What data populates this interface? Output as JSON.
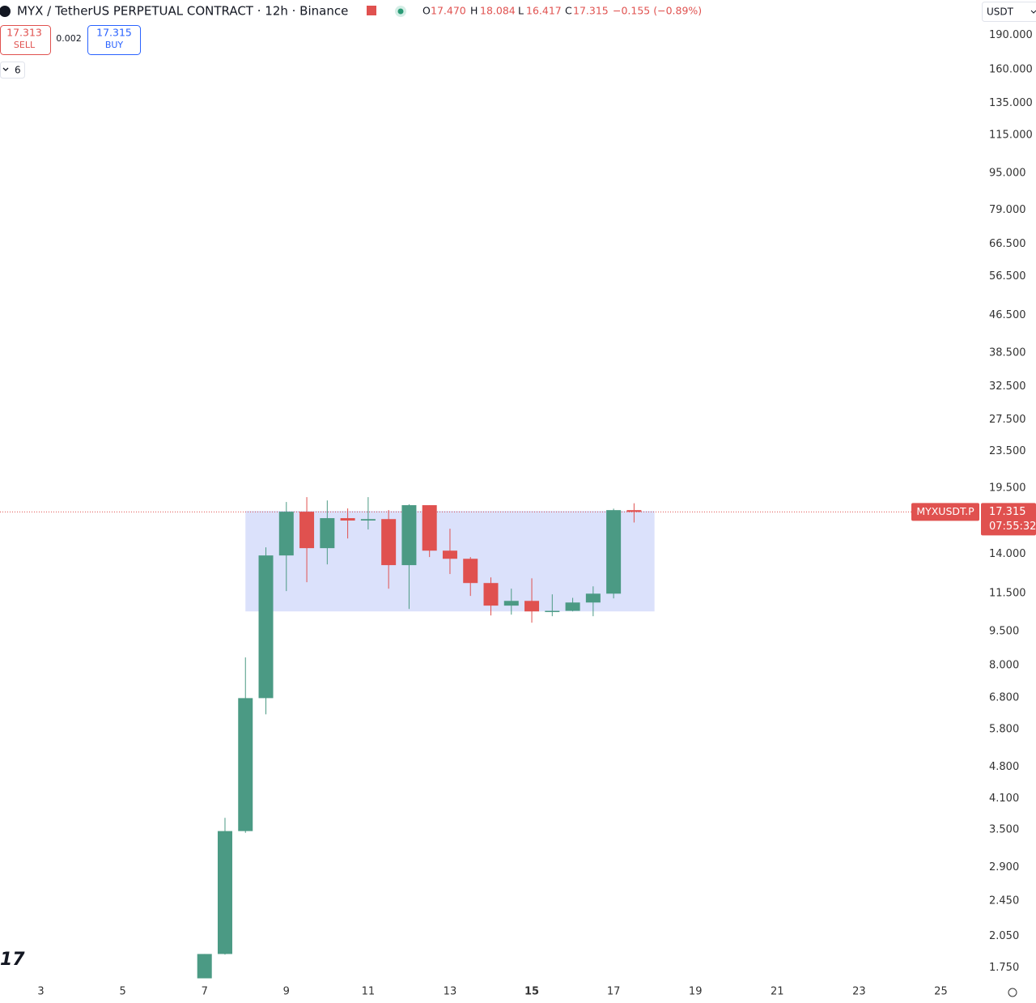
{
  "header": {
    "title": "MYX / TetherUS PERPETUAL CONTRACT · 12h · Binance",
    "legend": {
      "o": "O",
      "open": "17.470",
      "h": "H",
      "high": "18.084",
      "l": "L",
      "low": "16.417",
      "c": "C",
      "close": "17.315",
      "change": "−0.155 (−0.89%)"
    },
    "sell": {
      "price": "17.313",
      "label": "SELL"
    },
    "spread": "0.002",
    "buy": {
      "price": "17.315",
      "label": "BUY"
    },
    "indicators": "6",
    "currency": "USDT"
  },
  "chart_data": {
    "type": "candlestick",
    "log_scale": true,
    "up_color": "#4b9a84",
    "down_color": "#e0514f",
    "x": [
      7,
      7.5,
      8,
      8.5,
      9,
      9.5,
      10,
      10.5,
      11,
      11.5,
      12,
      12.5,
      13,
      13.5,
      14,
      14.5,
      15,
      15.5,
      16,
      16.5,
      17,
      17.5
    ],
    "open": [
      1.66,
      1.876,
      3.48,
      6.79,
      13.91,
      17.33,
      14.43,
      16.78,
      16.58,
      16.7,
      13.25,
      17.91,
      14.25,
      13.68,
      12.11,
      10.81,
      11.07,
      10.5,
      10.53,
      10.98,
      11.48,
      17.47
    ],
    "high": [
      1.876,
      3.72,
      8.33,
      14.49,
      18.2,
      18.65,
      18.34,
      17.62,
      18.65,
      17.48,
      18.0,
      17.91,
      15.91,
      13.8,
      12.46,
      11.77,
      12.4,
      11.44,
      11.24,
      11.91,
      17.6,
      18.084
    ],
    "low": [
      1.66,
      1.87,
      3.45,
      6.26,
      11.63,
      12.16,
      13.3,
      15.15,
      15.85,
      11.77,
      10.63,
      13.8,
      12.67,
      11.35,
      10.29,
      10.33,
      9.92,
      10.25,
      10.5,
      10.25,
      11.21,
      16.417
    ],
    "close": [
      1.876,
      3.48,
      6.79,
      13.91,
      17.33,
      14.43,
      16.78,
      16.58,
      16.7,
      13.25,
      17.91,
      14.25,
      13.68,
      12.11,
      10.81,
      11.07,
      10.5,
      10.53,
      10.98,
      11.48,
      17.47,
      17.315
    ],
    "xlim": [
      2,
      26
    ],
    "xticks": [
      3,
      5,
      7,
      9,
      11,
      13,
      15,
      17,
      19,
      21,
      23,
      25
    ],
    "ylim": [
      1.65,
      227
    ],
    "yticks": [
      {
        "value": 190,
        "label": "190.000"
      },
      {
        "value": 160,
        "label": "160.000"
      },
      {
        "value": 135,
        "label": "135.000"
      },
      {
        "value": 115,
        "label": "115.000"
      },
      {
        "value": 95,
        "label": "95.000"
      },
      {
        "value": 79,
        "label": "79.000"
      },
      {
        "value": 66.5,
        "label": "66.500"
      },
      {
        "value": 56.5,
        "label": "56.500"
      },
      {
        "value": 46.5,
        "label": "46.500"
      },
      {
        "value": 38.5,
        "label": "38.500"
      },
      {
        "value": 32.5,
        "label": "32.500"
      },
      {
        "value": 27.5,
        "label": "27.500"
      },
      {
        "value": 23.5,
        "label": "23.500"
      },
      {
        "value": 19.5,
        "label": "19.500"
      },
      {
        "value": 14,
        "label": "14.000"
      },
      {
        "value": 11.5,
        "label": "11.500"
      },
      {
        "value": 9.5,
        "label": "9.500"
      },
      {
        "value": 8,
        "label": "8.000"
      },
      {
        "value": 6.8,
        "label": "6.800"
      },
      {
        "value": 5.8,
        "label": "5.800"
      },
      {
        "value": 4.8,
        "label": "4.800"
      },
      {
        "value": 4.1,
        "label": "4.100"
      },
      {
        "value": 3.5,
        "label": "3.500"
      },
      {
        "value": 2.9,
        "label": "2.900"
      },
      {
        "value": 2.45,
        "label": "2.450"
      },
      {
        "value": 2.05,
        "label": "2.050"
      },
      {
        "value": 1.75,
        "label": "1.750"
      }
    ],
    "range_box": {
      "x": [
        8,
        18
      ],
      "y": [
        10.5,
        17.4
      ],
      "color": "#dbe1fb"
    },
    "last_price": {
      "value": 17.315,
      "label": "17.315",
      "symbol": "MYXUSDT.P",
      "countdown": "07:55:32",
      "color": "#e0514f"
    }
  }
}
